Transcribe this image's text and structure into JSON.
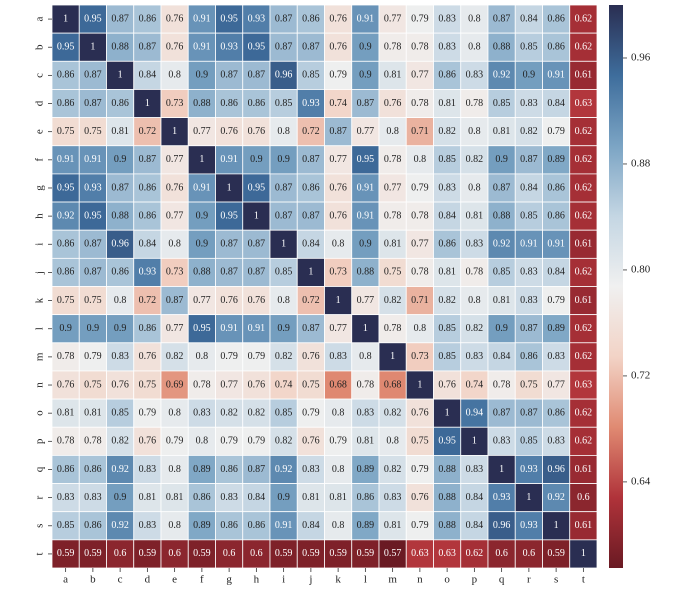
{
  "chart_data": {
    "type": "heatmap",
    "x": [
      "a",
      "b",
      "c",
      "d",
      "e",
      "f",
      "g",
      "h",
      "i",
      "j",
      "k",
      "l",
      "m",
      "n",
      "o",
      "p",
      "q",
      "r",
      "s",
      "t"
    ],
    "y": [
      "a",
      "b",
      "c",
      "d",
      "e",
      "f",
      "g",
      "h",
      "i",
      "j",
      "k",
      "l",
      "m",
      "n",
      "o",
      "p",
      "q",
      "r",
      "s",
      "t"
    ],
    "values": [
      [
        1,
        0.95,
        0.87,
        0.86,
        0.76,
        0.91,
        0.95,
        0.93,
        0.87,
        0.86,
        0.76,
        0.91,
        0.77,
        0.79,
        0.83,
        0.8,
        0.87,
        0.84,
        0.86,
        0.62
      ],
      [
        0.95,
        1,
        0.88,
        0.87,
        0.76,
        0.91,
        0.93,
        0.95,
        0.87,
        0.87,
        0.76,
        0.9,
        0.78,
        0.78,
        0.83,
        0.8,
        0.88,
        0.85,
        0.86,
        0.62
      ],
      [
        0.86,
        0.87,
        1,
        0.84,
        0.8,
        0.9,
        0.87,
        0.87,
        0.96,
        0.85,
        0.79,
        0.9,
        0.81,
        0.77,
        0.86,
        0.83,
        0.92,
        0.9,
        0.91,
        0.61
      ],
      [
        0.86,
        0.87,
        0.86,
        1,
        0.73,
        0.88,
        0.86,
        0.86,
        0.85,
        0.93,
        0.74,
        0.87,
        0.76,
        0.78,
        0.81,
        0.78,
        0.85,
        0.83,
        0.84,
        0.63
      ],
      [
        0.75,
        0.75,
        0.81,
        0.72,
        1,
        0.77,
        0.76,
        0.76,
        0.8,
        0.72,
        0.87,
        0.77,
        0.8,
        0.71,
        0.82,
        0.8,
        0.81,
        0.82,
        0.79,
        0.62
      ],
      [
        0.91,
        0.91,
        0.9,
        0.87,
        0.77,
        1,
        0.91,
        0.9,
        0.9,
        0.87,
        0.77,
        0.95,
        0.78,
        0.8,
        0.85,
        0.82,
        0.9,
        0.87,
        0.89,
        0.62
      ],
      [
        0.95,
        0.93,
        0.87,
        0.86,
        0.76,
        0.91,
        1,
        0.95,
        0.87,
        0.86,
        0.76,
        0.91,
        0.77,
        0.79,
        0.83,
        0.8,
        0.87,
        0.84,
        0.86,
        0.62
      ],
      [
        0.92,
        0.95,
        0.88,
        0.86,
        0.77,
        0.9,
        0.95,
        1,
        0.87,
        0.87,
        0.76,
        0.91,
        0.78,
        0.78,
        0.84,
        0.81,
        0.88,
        0.85,
        0.86,
        0.62
      ],
      [
        0.86,
        0.87,
        0.96,
        0.84,
        0.8,
        0.9,
        0.87,
        0.87,
        1,
        0.84,
        0.8,
        0.9,
        0.81,
        0.77,
        0.86,
        0.83,
        0.92,
        0.91,
        0.91,
        0.61
      ],
      [
        0.86,
        0.87,
        0.86,
        0.93,
        0.73,
        0.88,
        0.87,
        0.87,
        0.85,
        1,
        0.73,
        0.88,
        0.75,
        0.78,
        0.81,
        0.78,
        0.85,
        0.83,
        0.84,
        0.62
      ],
      [
        0.75,
        0.75,
        0.8,
        0.72,
        0.87,
        0.77,
        0.76,
        0.76,
        0.8,
        0.72,
        1,
        0.77,
        0.82,
        0.71,
        0.82,
        0.8,
        0.81,
        0.83,
        0.79,
        0.61
      ],
      [
        0.9,
        0.9,
        0.9,
        0.86,
        0.77,
        0.95,
        0.91,
        0.91,
        0.9,
        0.87,
        0.77,
        1,
        0.78,
        0.8,
        0.85,
        0.82,
        0.9,
        0.87,
        0.89,
        0.62
      ],
      [
        0.78,
        0.79,
        0.83,
        0.76,
        0.82,
        0.8,
        0.79,
        0.79,
        0.82,
        0.76,
        0.83,
        0.8,
        1,
        0.73,
        0.85,
        0.83,
        0.84,
        0.86,
        0.83,
        0.62
      ],
      [
        0.76,
        0.75,
        0.76,
        0.75,
        0.69,
        0.78,
        0.77,
        0.76,
        0.74,
        0.75,
        0.68,
        0.78,
        0.68,
        1,
        0.76,
        0.74,
        0.78,
        0.75,
        0.77,
        0.63
      ],
      [
        0.81,
        0.81,
        0.85,
        0.79,
        0.8,
        0.83,
        0.82,
        0.82,
        0.85,
        0.79,
        0.8,
        0.83,
        0.82,
        0.76,
        1,
        0.94,
        0.87,
        0.87,
        0.86,
        0.62
      ],
      [
        0.78,
        0.78,
        0.82,
        0.76,
        0.79,
        0.8,
        0.79,
        0.79,
        0.82,
        0.76,
        0.79,
        0.81,
        0.8,
        0.75,
        0.95,
        1,
        0.83,
        0.85,
        0.83,
        0.62
      ],
      [
        0.86,
        0.86,
        0.92,
        0.83,
        0.8,
        0.89,
        0.86,
        0.87,
        0.92,
        0.83,
        0.8,
        0.89,
        0.82,
        0.79,
        0.88,
        0.83,
        1,
        0.93,
        0.96,
        0.61
      ],
      [
        0.83,
        0.83,
        0.9,
        0.81,
        0.81,
        0.86,
        0.83,
        0.84,
        0.9,
        0.81,
        0.81,
        0.86,
        0.83,
        0.76,
        0.88,
        0.84,
        0.93,
        1,
        0.92,
        0.6
      ],
      [
        0.85,
        0.86,
        0.92,
        0.83,
        0.8,
        0.89,
        0.86,
        0.86,
        0.91,
        0.84,
        0.8,
        0.89,
        0.81,
        0.79,
        0.88,
        0.84,
        0.96,
        0.93,
        1,
        0.61
      ],
      [
        0.59,
        0.59,
        0.6,
        0.59,
        0.6,
        0.59,
        0.6,
        0.6,
        0.59,
        0.59,
        0.59,
        0.59,
        0.57,
        0.63,
        0.63,
        0.62,
        0.6,
        0.6,
        0.59,
        1
      ]
    ],
    "zlim": [
      0.575,
      1
    ],
    "zticks": [
      0.64,
      0.72,
      {
        "value": 0.8,
        "label": "0.80"
      },
      0.88,
      0.96
    ],
    "colormap": [
      "#6a1a23",
      "#b0333a",
      "#e08a72",
      "#f2d3c6",
      "#f0f0f0",
      "#c4d6e3",
      "#7ba4c4",
      "#3e6d9c",
      "#2a2e52"
    ]
  }
}
